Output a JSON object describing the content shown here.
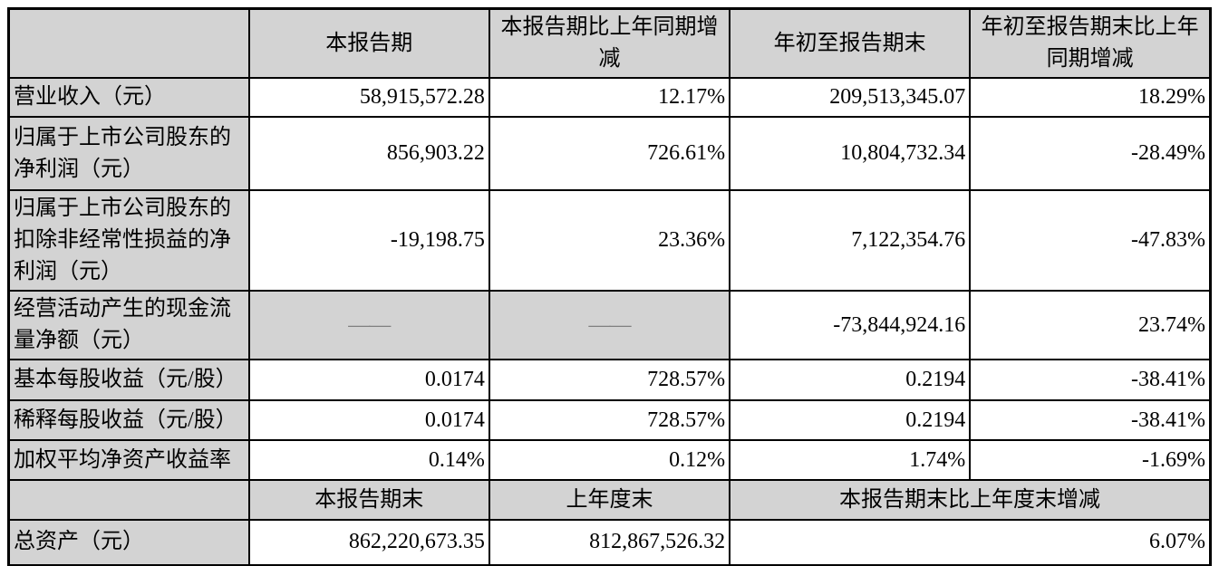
{
  "table": {
    "header": {
      "corner": "",
      "period": "本报告期",
      "period_yoy": "本报告期比上年同期增\n减",
      "ytd": "年初至报告期末",
      "ytd_yoy": "年初至报告期末比上年\n同期增减"
    },
    "rows": [
      {
        "label": "营业收入（元）",
        "period": "58,915,572.28",
        "period_yoy": "12.17%",
        "ytd": "209,513,345.07",
        "ytd_yoy": "18.29%"
      },
      {
        "label": "归属于上市公司股东的\n净利润（元）",
        "period": "856,903.22",
        "period_yoy": "726.61%",
        "ytd": "10,804,732.34",
        "ytd_yoy": "-28.49%"
      },
      {
        "label": "归属于上市公司股东的\n扣除非经常性损益的净\n利润（元）",
        "period": "-19,198.75",
        "period_yoy": "23.36%",
        "ytd": "7,122,354.76",
        "ytd_yoy": "-47.83%"
      },
      {
        "label": "经营活动产生的现金流\n量净额（元）",
        "period": "——",
        "period_yoy": "——",
        "ytd": "-73,844,924.16",
        "ytd_yoy": "23.74%"
      },
      {
        "label": "基本每股收益（元/股）",
        "period": "0.0174",
        "period_yoy": "728.57%",
        "ytd": "0.2194",
        "ytd_yoy": "-38.41%"
      },
      {
        "label": "稀释每股收益（元/股）",
        "period": "0.0174",
        "period_yoy": "728.57%",
        "ytd": "0.2194",
        "ytd_yoy": "-38.41%"
      },
      {
        "label": "加权平均净资产收益率",
        "period": "0.14%",
        "period_yoy": "0.12%",
        "ytd": "1.74%",
        "ytd_yoy": "-1.69%"
      }
    ],
    "header2": {
      "corner": "",
      "period_end": "本报告期末",
      "prior_year_end": "上年度末",
      "change": "本报告期末比上年度末增减"
    },
    "total_row": {
      "label": "总资产（元）",
      "period_end": "862,220,673.35",
      "prior_year_end": "812,867,526.32",
      "change": "6.07%"
    }
  },
  "colors": {
    "header_bg": "#d3d3d3",
    "border": "#000000",
    "dash_text": "#808080",
    "page_bg": "#ffffff"
  }
}
